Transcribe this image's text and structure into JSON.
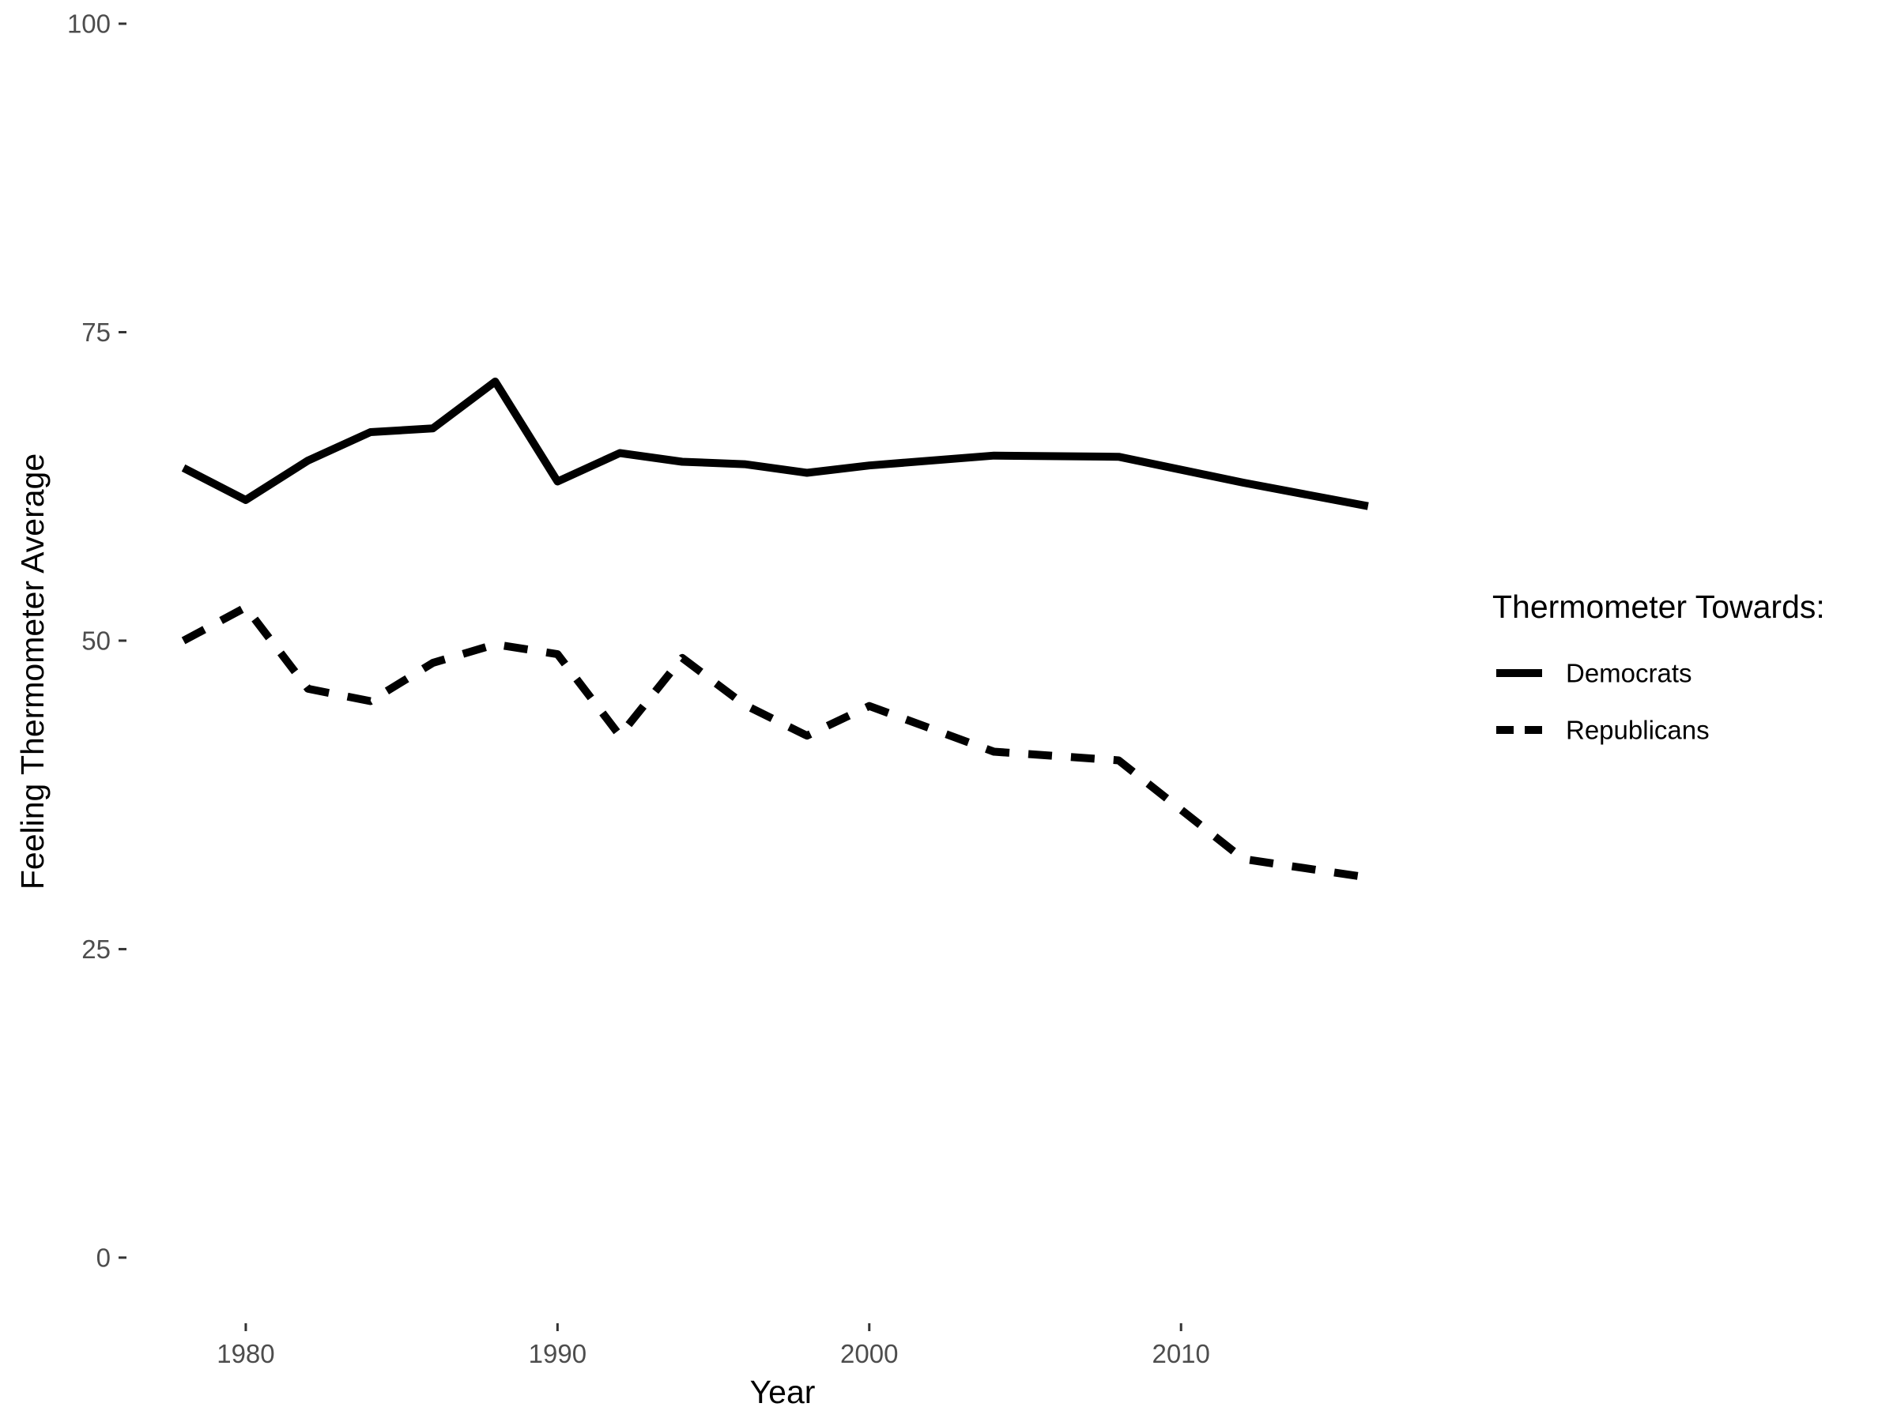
{
  "chart_data": {
    "type": "line",
    "title": "",
    "xlabel": "Year",
    "ylabel": "Feeling Thermometer Average",
    "xlim": [
      1976.3,
      2017.5
    ],
    "ylim": [
      -5,
      100
    ],
    "x_ticks": [
      1980,
      1990,
      2000,
      2010
    ],
    "y_ticks": [
      0,
      25,
      50,
      75,
      100
    ],
    "grid": false,
    "legend": {
      "title": "Thermometer Towards:",
      "position": "right"
    },
    "series": [
      {
        "name": "Democrats",
        "line_style": "solid",
        "color": "#000000",
        "x": [
          1978,
          1980,
          1982,
          1984,
          1986,
          1988,
          1990,
          1992,
          1994,
          1996,
          1998,
          2000,
          2004,
          2008,
          2012,
          2016
        ],
        "values": [
          64.0,
          61.4,
          64.6,
          66.9,
          67.2,
          71.0,
          62.9,
          65.2,
          64.5,
          64.3,
          63.6,
          64.2,
          65.0,
          64.9,
          62.8,
          60.9
        ]
      },
      {
        "name": "Republicans",
        "line_style": "dashed",
        "color": "#000000",
        "x": [
          1978,
          1980,
          1982,
          1984,
          1986,
          1988,
          1990,
          1992,
          1994,
          1996,
          1998,
          2000,
          2004,
          2008,
          2012,
          2016
        ],
        "values": [
          50.0,
          52.7,
          46.1,
          45.1,
          48.2,
          49.7,
          48.9,
          42.3,
          48.6,
          44.8,
          42.3,
          44.7,
          41.0,
          40.3,
          32.3,
          30.8
        ]
      }
    ]
  }
}
